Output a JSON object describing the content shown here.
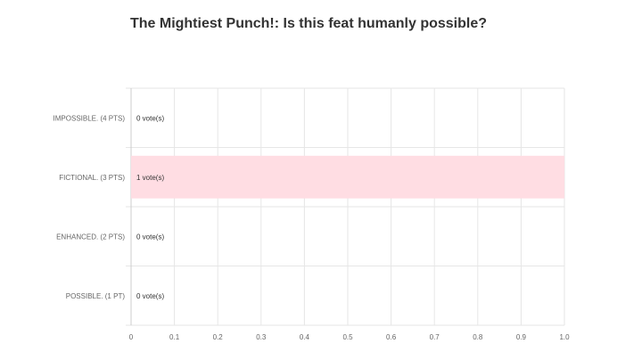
{
  "title": "The Mightiest Punch!: Is this feat humanly possible?",
  "chart_data": {
    "type": "bar",
    "orientation": "horizontal",
    "title": "The Mightiest Punch!: Is this feat humanly possible?",
    "categories": [
      "IMPOSSIBLE. (4 PTS)",
      "FICTIONAL. (3 PTS)",
      "ENHANCED. (2 PTS)",
      "POSSIBLE. (1 PT)"
    ],
    "values": [
      0,
      1,
      0,
      0
    ],
    "data_labels": [
      "0 vote(s)",
      "1 vote(s)",
      "0 vote(s)",
      "0 vote(s)"
    ],
    "xlim": [
      0,
      1
    ],
    "xticks": [
      "0",
      "0.1",
      "0.2",
      "0.3",
      "0.4",
      "0.5",
      "0.6",
      "0.7",
      "0.8",
      "0.9",
      "1.0"
    ],
    "xlabel": "",
    "ylabel": "",
    "grid": true,
    "colors": {
      "bar": "#ffdde3",
      "grid": "#e6e6e6",
      "title": "#333333",
      "labels": "#666666"
    }
  }
}
